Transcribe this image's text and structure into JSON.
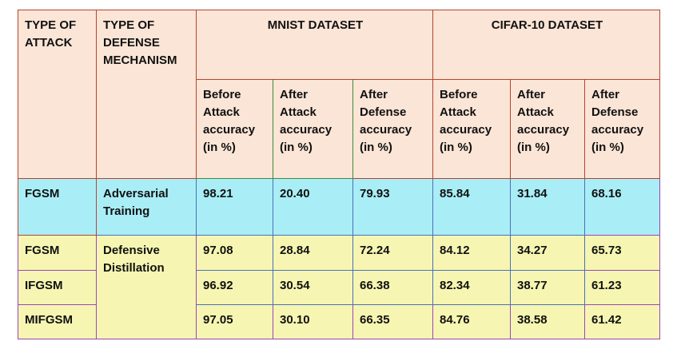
{
  "header": {
    "type_of_attack": "TYPE OF\nATTACK",
    "type_of_defense": "TYPE OF\nDEFENSE\nMECHANISM",
    "mnist": "MNIST DATASET",
    "cifar": "CIFAR-10 DATASET",
    "sub": [
      "Before\nAttack\naccuracy\n(in %)",
      "After\nAttack\naccuracy\n(in %)",
      "After\nDefense\naccuracy\n(in %)",
      "Before\nAttack\naccuracy\n(in %)",
      "After\nAttack\naccuracy\n(in %)",
      "After\nDefense\naccuracy\n (in %)"
    ]
  },
  "rows": [
    {
      "attack": "FGSM",
      "defense": "Adversarial\nTraining",
      "values": [
        "98.21",
        "20.40",
        "79.93",
        "85.84",
        "31.84",
        "68.16"
      ]
    },
    {
      "attack": "FGSM",
      "defense": "Defensive\nDistillation",
      "values": [
        "97.08",
        "28.84",
        "72.24",
        "84.12",
        "34.27",
        "65.73"
      ]
    },
    {
      "attack": "IFGSM",
      "values": [
        "96.92",
        "30.54",
        "66.38",
        "82.34",
        "38.77",
        "61.23"
      ]
    },
    {
      "attack": "MIFGSM",
      "values": [
        "97.05",
        "30.10",
        "66.35",
        "84.76",
        "38.58",
        "61.42"
      ]
    }
  ]
}
